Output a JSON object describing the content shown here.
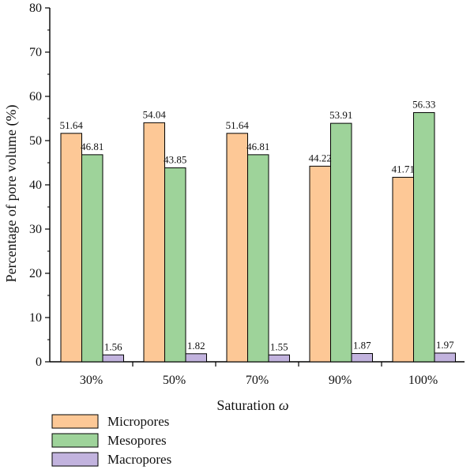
{
  "chart_data": {
    "type": "bar",
    "title": "",
    "xlabel_text": "Saturation ",
    "xlabel_symbol": "ω",
    "ylabel": "Percentage of pore volume (%)",
    "ylim": [
      0,
      80
    ],
    "yticks": [
      "0",
      "10",
      "20",
      "30",
      "40",
      "50",
      "60",
      "70",
      "80"
    ],
    "categories": [
      "30%",
      "50%",
      "70%",
      "90%",
      "100%"
    ],
    "grid": false,
    "legend_position": "bottom-left",
    "series": [
      {
        "name": "Micropores",
        "color": "#fdc896",
        "values": [
          51.64,
          54.04,
          51.64,
          44.22,
          41.71
        ],
        "labels": [
          "51.64",
          "54.04",
          "51.64",
          "44.22",
          "41.71"
        ]
      },
      {
        "name": "Mesopores",
        "color": "#9ed39a",
        "values": [
          46.81,
          43.85,
          46.81,
          53.91,
          56.33
        ],
        "labels": [
          "46.81",
          "43.85",
          "46.81",
          "53.91",
          "56.33"
        ]
      },
      {
        "name": "Macropores",
        "color": "#c2b3de",
        "values": [
          1.56,
          1.82,
          1.55,
          1.87,
          1.97
        ],
        "labels": [
          "1.56",
          "1.82",
          "1.55",
          "1.87",
          "1.97"
        ]
      }
    ]
  }
}
